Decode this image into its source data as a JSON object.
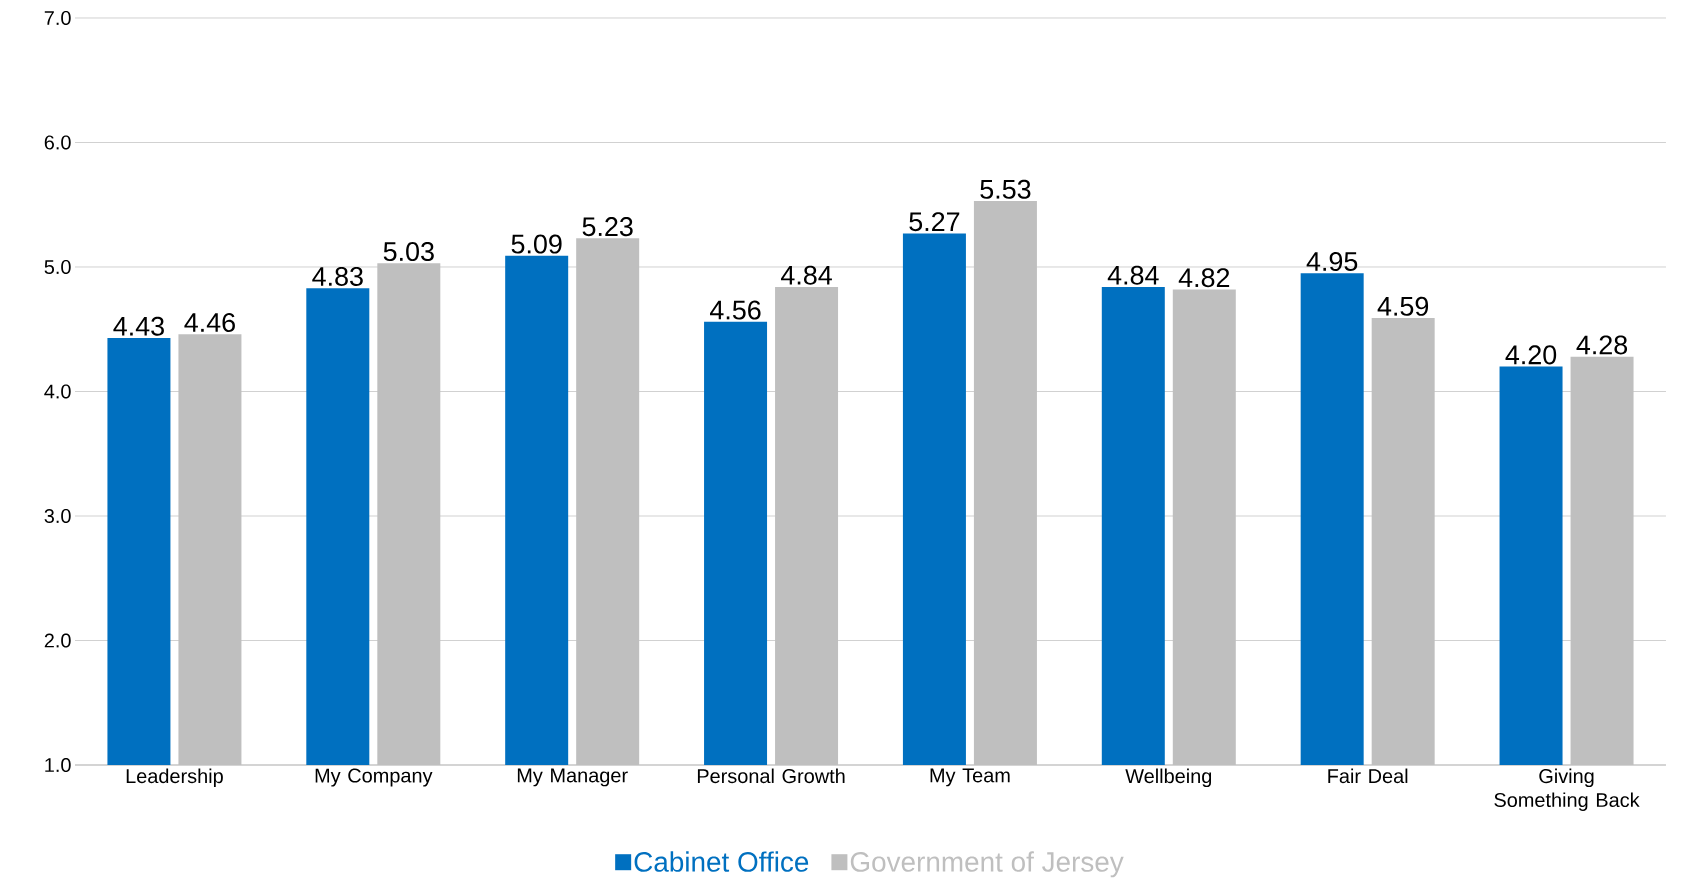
{
  "chart_data": {
    "type": "bar",
    "categories": [
      "Leadership",
      "My Company",
      "My Manager",
      "Personal Growth",
      "My Team",
      "Wellbeing",
      "Fair Deal",
      "Giving Something Back"
    ],
    "series": [
      {
        "name": "Cabinet Office",
        "color": "#0070c0",
        "values": [
          4.43,
          4.83,
          5.09,
          4.56,
          5.27,
          4.84,
          4.95,
          4.2
        ],
        "value_labels": [
          "4.43",
          "4.83",
          "5.09",
          "4.56",
          "5.27",
          "4.84",
          "4.95",
          "4.20"
        ]
      },
      {
        "name": "Government of Jersey",
        "color": "#bfbfbf",
        "values": [
          4.46,
          5.03,
          5.23,
          4.84,
          5.53,
          4.82,
          4.59,
          4.28
        ],
        "value_labels": [
          "4.46",
          "5.03",
          "5.23",
          "4.84",
          "5.53",
          "4.82",
          "4.59",
          "4.28"
        ]
      }
    ],
    "ylim": [
      1,
      7
    ],
    "yticks": [
      {
        "value": 1,
        "label": "1.0"
      },
      {
        "value": 2,
        "label": "2.0"
      },
      {
        "value": 3,
        "label": "3.0"
      },
      {
        "value": 4,
        "label": "4.0"
      },
      {
        "value": 5,
        "label": "5.0"
      },
      {
        "value": 6,
        "label": "6.0"
      },
      {
        "value": 7,
        "label": "7.0"
      }
    ],
    "grid": "y",
    "legend": "bottom"
  }
}
